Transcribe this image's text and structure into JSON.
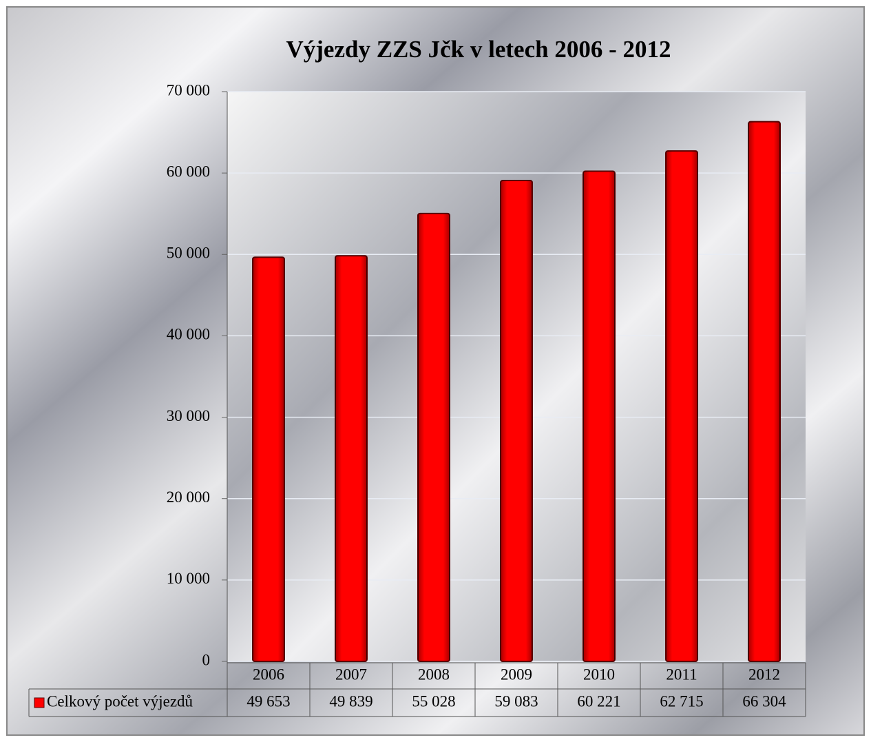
{
  "chart_data": {
    "type": "bar",
    "title": "Výjezdy ZZS Jčk v letech 2006 - 2012",
    "categories": [
      "2006",
      "2007",
      "2008",
      "2009",
      "2010",
      "2011",
      "2012"
    ],
    "series": [
      {
        "name": "Celkový počet výjezdů",
        "color": "#ff0000",
        "values": [
          49653,
          49839,
          55028,
          59083,
          60221,
          62715,
          66304
        ],
        "value_labels": [
          "49 653",
          "49 839",
          "55 028",
          "59 083",
          "60 221",
          "62 715",
          "66 304"
        ]
      }
    ],
    "ylim": [
      0,
      70000
    ],
    "yticks": [
      0,
      {
        "value": 10000,
        "label": "10 000"
      },
      {
        "value": 20000,
        "label": "20 000"
      },
      {
        "value": 30000,
        "label": "30 000"
      },
      {
        "value": 40000,
        "label": "40 000"
      },
      {
        "value": 50000,
        "label": "50 000"
      },
      {
        "value": 60000,
        "label": "60 000"
      },
      {
        "value": 70000,
        "label": "70 000"
      }
    ],
    "grid": true,
    "data_table": true
  }
}
